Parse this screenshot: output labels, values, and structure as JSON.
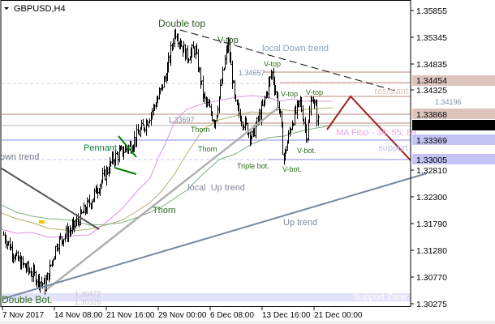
{
  "symbol": "GBPUSD,H4",
  "colors": {
    "resistance": "#dcc4bc",
    "support": "#c4c4f4",
    "support_zone": "#e2e2fa",
    "current": "#000000",
    "ma_pink": "#e090e0",
    "ma_olive": "#b8b070",
    "ma_green": "#80b080",
    "zigzag": "#a02020",
    "pennant": "#008000"
  },
  "chart_data": {
    "type": "ohlc",
    "price_axis": [
      "1.35855",
      "1.35345",
      "1.34835",
      "1.34325",
      "1.32810",
      "1.32300",
      "1.31790",
      "1.31280",
      "1.30770",
      "1.30275"
    ],
    "time_axis": [
      "7 Nov 2017",
      "14 Nov 08:00",
      "21 Nov 16:00",
      "29 Nov 00:00",
      "6 Dec 08:00",
      "13 Dec 16:00",
      "21 Dec 00:00"
    ],
    "ylim": [
      1.30236,
      1.3625
    ],
    "price_path": [
      [
        "2017-11-07T04:00",
        1.3155
      ],
      [
        "2017-11-09T00:00",
        1.3108
      ],
      [
        "2017-11-13T00:00",
        1.3057
      ],
      [
        "2017-11-14T16:00",
        1.3139
      ],
      [
        "2017-11-17T00:00",
        1.317
      ],
      [
        "2017-11-19T08:00",
        1.3217
      ],
      [
        "2017-11-22T16:00",
        1.3302
      ],
      [
        "2017-11-25T00:00",
        1.3326
      ],
      [
        "2017-11-27T08:00",
        1.3372
      ],
      [
        "2017-11-29T00:00",
        1.3419
      ],
      [
        "2017-11-30T04:00",
        1.3466
      ],
      [
        "2017-12-01T08:00",
        1.3548
      ],
      [
        "2017-12-03T00:00",
        1.3497
      ],
      [
        "2017-12-04T04:00",
        1.3512
      ],
      [
        "2017-12-05T08:00",
        1.3419
      ],
      [
        "2017-12-07T00:00",
        1.3372
      ],
      [
        "2017-12-08T20:00",
        1.3525
      ],
      [
        "2017-12-09T20:00",
        1.3404
      ],
      [
        "2017-12-12T04:00",
        1.3341
      ],
      [
        "2017-12-13T20:00",
        1.3404
      ],
      [
        "2017-12-15T00:00",
        1.3469
      ],
      [
        "2017-12-16T04:00",
        1.3388
      ],
      [
        "2017-12-16T16:00",
        1.3299
      ],
      [
        "2017-12-17T20:00",
        1.3372
      ],
      [
        "2017-12-19T00:00",
        1.3411
      ],
      [
        "2017-12-20T00:00",
        1.3341
      ],
      [
        "2017-12-20T16:00",
        1.3426
      ],
      [
        "2017-12-21T16:00",
        1.3365
      ]
    ],
    "current_price": "1.33646",
    "level_tags": {
      "r1": "1.34454",
      "r2": "1.33868",
      "s1": "1.33369",
      "s2": "1.33005"
    },
    "annotations": {
      "double_top": "Double top",
      "v_top1": "V-top",
      "local_down": "local Down trend",
      "v_top2": "V-top",
      "p_34657": "1.34657",
      "v_top3": "V-top",
      "v_top4": "V-top",
      "p_33697": "1.33697",
      "thorn1": "Thorn",
      "thorn2": "Thorn",
      "triple_bot": "Triple bot.",
      "v_bot1": "V-bot.",
      "v_bot2": "V-bot.",
      "resistant": "resistant",
      "p_34196": "1.34196",
      "ma_fibo": "MA Fibo - 34; 55; 89",
      "support": "support",
      "pennant": "Pennant",
      "down_trend": "own trend",
      "local_up": "local  Up trend",
      "thorn3": "Thorn",
      "up_trend": "Up trend",
      "double_bot": "Double Bot.",
      "p_30472": "1.30472",
      "p_30326": "1.30326",
      "support_zone": "Support Zone"
    }
  }
}
